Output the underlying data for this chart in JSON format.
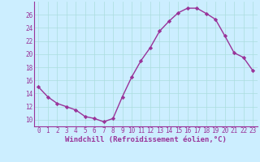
{
  "x": [
    0,
    1,
    2,
    3,
    4,
    5,
    6,
    7,
    8,
    9,
    10,
    11,
    12,
    13,
    14,
    15,
    16,
    17,
    18,
    19,
    20,
    21,
    22,
    23
  ],
  "y": [
    15.0,
    13.5,
    12.5,
    12.0,
    11.5,
    10.5,
    10.2,
    9.7,
    10.2,
    13.5,
    16.5,
    19.0,
    21.0,
    23.5,
    25.0,
    26.3,
    27.0,
    27.0,
    26.2,
    25.3,
    22.8,
    20.2,
    19.5,
    17.5
  ],
  "line_color": "#993399",
  "marker": "D",
  "markersize": 2.2,
  "linewidth": 1.0,
  "bg_color": "#cceeff",
  "grid_color": "#aadddd",
  "xlabel": "Windchill (Refroidissement éolien,°C)",
  "xlabel_color": "#993399",
  "xlabel_fontsize": 6.5,
  "tick_color": "#993399",
  "tick_fontsize": 5.5,
  "ylim": [
    9,
    28
  ],
  "yticks": [
    10,
    12,
    14,
    16,
    18,
    20,
    22,
    24,
    26
  ],
  "xlim": [
    -0.5,
    23.5
  ],
  "spine_color": "#993399"
}
